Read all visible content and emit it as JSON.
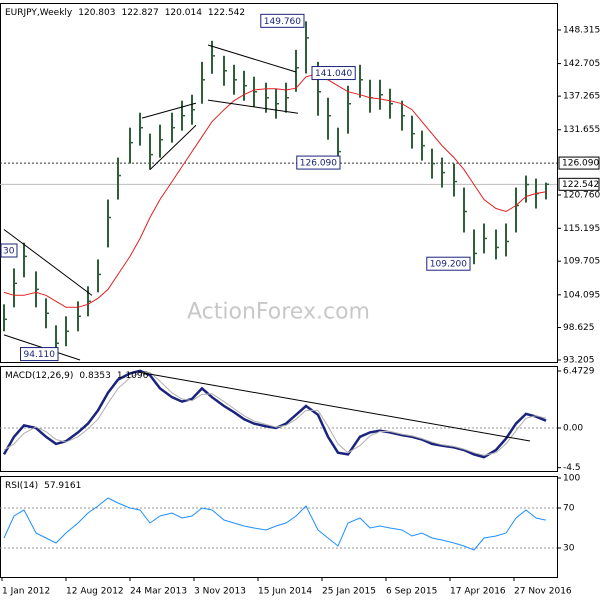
{
  "chart_data": [
    {
      "type": "ohlc",
      "title": "EURJPY,Weekly",
      "header_values": [
        120.803,
        122.827,
        120.014,
        122.542
      ],
      "watermark": "ActionForex.com",
      "x": [
        1,
        6,
        11,
        17,
        22,
        27,
        32,
        38,
        43,
        48,
        53,
        58,
        64,
        69,
        74,
        79,
        85,
        90,
        95,
        100,
        105,
        111,
        116,
        121,
        126,
        132,
        137,
        142,
        147,
        152,
        158,
        163,
        168,
        173,
        179,
        184,
        189,
        194,
        200,
        205,
        210,
        215,
        220,
        226,
        231,
        236,
        241,
        247,
        252,
        257,
        262,
        267,
        272
      ],
      "high": [
        102.5,
        108.5,
        112.8,
        108,
        103.5,
        99,
        100.5,
        103,
        105.5,
        110,
        120,
        127,
        132,
        134.5,
        131,
        132.5,
        134.5,
        136.5,
        137.5,
        143,
        146.5,
        144,
        142.5,
        141.5,
        140.5,
        139.5,
        138.5,
        139.5,
        145,
        149.76,
        143,
        137,
        132,
        139,
        142.5,
        140,
        140,
        138.5,
        136.5,
        134,
        131.5,
        128.5,
        127,
        126,
        122,
        115,
        116,
        115,
        116,
        122,
        124,
        123.5,
        122.827
      ],
      "low": [
        98,
        102,
        107,
        102,
        98.5,
        94.11,
        95.5,
        98,
        100.5,
        104.5,
        112,
        120,
        126,
        129,
        125,
        127,
        129.5,
        131.5,
        132.5,
        136,
        141,
        139,
        137.5,
        136.5,
        135.5,
        134.5,
        133.5,
        134.5,
        138,
        141.04,
        134,
        130,
        126.09,
        131,
        137,
        134.5,
        135,
        133.5,
        131.5,
        128.5,
        126.5,
        123.5,
        122,
        120.5,
        114.5,
        109.2,
        111,
        110,
        110.5,
        114.5,
        119.5,
        118.5,
        120.014
      ],
      "close": [
        100,
        106,
        110.5,
        105,
        101,
        96,
        98,
        100.5,
        103,
        107.5,
        117,
        124,
        129.5,
        132,
        127.5,
        130,
        132,
        134,
        135,
        140,
        144,
        141.5,
        140,
        139,
        138,
        137,
        136,
        137,
        142,
        147,
        138,
        134,
        128,
        136,
        140,
        137,
        137.5,
        136,
        134,
        131,
        129,
        126,
        124.5,
        123,
        118,
        111,
        113.5,
        112,
        113,
        119,
        122.5,
        121,
        122.542
      ],
      "bar_color": "#2e5e3a",
      "ma": {
        "color": "#e02020",
        "values": [
          104.5,
          104,
          104,
          104.5,
          104,
          103,
          102,
          102,
          102.5,
          103.5,
          105,
          107.5,
          110.5,
          113.5,
          117,
          120,
          123,
          125.5,
          128,
          130.5,
          133,
          135,
          136.5,
          137.5,
          138.3,
          138.5,
          138.5,
          138.3,
          138.6,
          140.5,
          141,
          140,
          139,
          138,
          137.5,
          137,
          136.8,
          136.5,
          136,
          135,
          133,
          131,
          129,
          127,
          125,
          122.5,
          120,
          118.5,
          118,
          119,
          120.5,
          121,
          121.3
        ]
      },
      "xlim": [
        -1,
        277.5
      ],
      "ylim": [
        92.87,
        152.82
      ],
      "yticks": [
        148.315,
        142.705,
        137.265,
        131.655,
        {
          "value": 120.76,
          "label": "120.760"
        },
        115.195,
        109.705,
        104.095,
        98.625,
        93.205
      ],
      "levels": [
        {
          "value": 126.09,
          "label": "126.090"
        },
        {
          "value": 122.542,
          "label": "122.542"
        }
      ],
      "annotations": [
        {
          "label": "149.760",
          "x": 152,
          "value": 149.76
        },
        {
          "label": "141.040",
          "x": 154,
          "value": 141.04
        },
        {
          "label": "126.090",
          "x": 170,
          "value": 126.09
        },
        {
          "label": "109.200",
          "x": 235,
          "value": 109.2
        },
        {
          "label": "94.110",
          "x": 29,
          "value": 94.11
        }
      ],
      "edge_label": "30",
      "trendlines": [
        {
          "x": [
            1,
            45
          ],
          "values": [
            115,
            104
          ]
        },
        {
          "x": [
            1,
            39
          ],
          "values": [
            97.4,
            93.2
          ]
        },
        {
          "x": [
            70,
            97
          ],
          "values": [
            133.6,
            136.1
          ]
        },
        {
          "x": [
            74,
            97
          ],
          "values": [
            125,
            132.4
          ]
        },
        {
          "x": [
            103,
            147
          ],
          "values": [
            145.8,
            141.3
          ]
        },
        {
          "x": [
            103,
            148
          ],
          "values": [
            136.6,
            134.4
          ]
        }
      ]
    },
    {
      "type": "macd",
      "title": "MACD(12,26,9)",
      "header_values": [
        0.8353,
        1.1096
      ],
      "x": [
        1,
        6,
        11,
        17,
        22,
        27,
        32,
        38,
        43,
        48,
        53,
        58,
        64,
        69,
        74,
        79,
        85,
        90,
        95,
        100,
        105,
        111,
        116,
        121,
        126,
        132,
        137,
        142,
        147,
        152,
        158,
        163,
        168,
        173,
        179,
        184,
        189,
        194,
        200,
        205,
        210,
        215,
        220,
        226,
        231,
        236,
        241,
        247,
        252,
        257,
        262,
        267,
        272
      ],
      "series": [
        {
          "color": "#1a237e",
          "values": [
            -3.0,
            -1.0,
            0.3,
            0,
            -1.0,
            -1.8,
            -1.5,
            -0.5,
            0.5,
            2.0,
            4.0,
            5.5,
            6.2,
            6.5,
            6.0,
            4.5,
            3.5,
            3.0,
            3.3,
            4.5,
            3.5,
            2.5,
            1.8,
            1.0,
            0.5,
            0.2,
            0,
            0.5,
            1.5,
            2.5,
            1.5,
            -1.0,
            -2.8,
            -3.0,
            -1.0,
            -0.5,
            -0.3,
            -0.5,
            -0.8,
            -1.0,
            -1.3,
            -1.8,
            -2.0,
            -2.2,
            -2.5,
            -3.0,
            -3.3,
            -2.5,
            -1.2,
            0.5,
            1.6,
            1.3,
            0.8353
          ]
        },
        {
          "color": "#b0b0b0",
          "values": [
            -2.5,
            -1.8,
            -0.6,
            0.1,
            -0.4,
            -1.3,
            -1.6,
            -1.0,
            -0.1,
            1.0,
            2.8,
            4.5,
            5.7,
            6.3,
            6.3,
            5.3,
            4.0,
            3.3,
            3.1,
            3.8,
            3.9,
            3.0,
            2.2,
            1.4,
            0.8,
            0.4,
            0.1,
            0.3,
            1.0,
            2.0,
            2.0,
            0.2,
            -1.8,
            -2.8,
            -2.0,
            -0.9,
            -0.4,
            -0.4,
            -0.7,
            -0.9,
            -1.2,
            -1.6,
            -1.9,
            -2.1,
            -2.4,
            -2.8,
            -3.1,
            -2.8,
            -1.8,
            -0.3,
            1.1,
            1.4,
            1.1096
          ]
        }
      ],
      "xlim": [
        -1,
        277.5
      ],
      "ylim": [
        -4.88,
        7.04
      ],
      "yticks": [
        6.4729,
        {
          "value": 0,
          "label": "0.00"
        },
        -4.5
      ],
      "trendlines": [
        {
          "x": [
            68,
            264
          ],
          "values": [
            6.36,
            -1.48
          ]
        }
      ]
    },
    {
      "type": "rsi",
      "title": "RSI(14)",
      "header_values": [
        57.9161
      ],
      "x": [
        1,
        6,
        11,
        17,
        22,
        27,
        32,
        38,
        43,
        48,
        53,
        58,
        64,
        69,
        74,
        79,
        85,
        90,
        95,
        100,
        105,
        111,
        116,
        121,
        126,
        132,
        137,
        142,
        147,
        152,
        158,
        163,
        168,
        173,
        179,
        184,
        189,
        194,
        200,
        205,
        210,
        215,
        220,
        226,
        231,
        236,
        241,
        247,
        252,
        257,
        262,
        267,
        272
      ],
      "series": [
        {
          "color": "#1e90ff",
          "values": [
            40,
            62,
            68,
            45,
            40,
            35,
            45,
            55,
            65,
            72,
            80,
            75,
            70,
            68,
            55,
            62,
            65,
            60,
            62,
            70,
            68,
            58,
            55,
            52,
            50,
            48,
            52,
            55,
            62,
            72,
            48,
            40,
            32,
            55,
            60,
            50,
            52,
            50,
            48,
            42,
            45,
            40,
            38,
            35,
            32,
            28,
            40,
            42,
            45,
            60,
            68,
            60,
            57.9161
          ]
        }
      ],
      "xlim": [
        -1,
        277.5
      ],
      "ylim": [
        1,
        102
      ],
      "yticks": [
        100,
        70,
        30
      ],
      "levels": [
        70,
        30
      ],
      "xticks": [
        {
          "value": 0,
          "label": "1 Jan 2012"
        },
        {
          "value": 32,
          "label": "12 Aug 2012"
        },
        {
          "value": 64,
          "label": "24 Mar 2013"
        },
        {
          "value": 96,
          "label": "3 Nov 2013"
        },
        {
          "value": 128,
          "label": "15 Jun 2014"
        },
        {
          "value": 160,
          "label": "25 Jan 2015"
        },
        {
          "value": 192,
          "label": "6 Sep 2015"
        },
        {
          "value": 224,
          "label": "17 Apr 2016"
        },
        {
          "value": 256,
          "label": "27 Nov 2016"
        }
      ]
    }
  ]
}
